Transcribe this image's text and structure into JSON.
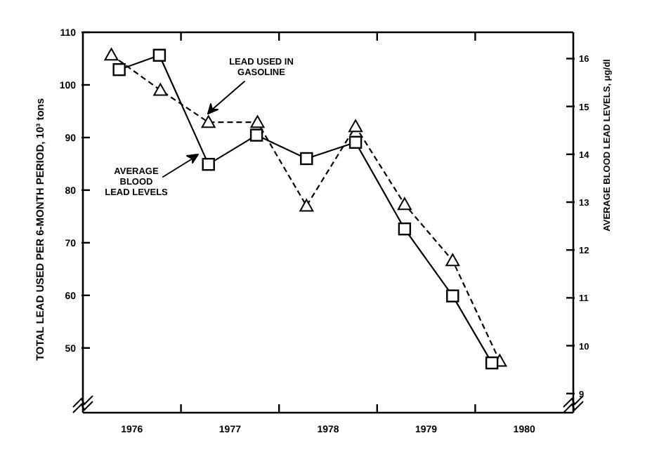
{
  "chart_data": {
    "type": "line",
    "ylabel": "TOTAL LEAD USED PER 6-MONTH PERIOD, 10³ tons",
    "y2label": "AVERAGE BLOOD LEAD LEVELS, μg/dl",
    "annotations": [
      "LEAD USED IN\nGASOLINE",
      "AVERAGE\nBLOOD\nLEAD LEVELS"
    ],
    "xlim": [
      1976,
      1981
    ],
    "xticks": [
      {
        "value": 1976.5,
        "label": "1976"
      },
      {
        "value": 1977,
        "label": null
      },
      {
        "value": 1977.5,
        "label": "1977"
      },
      {
        "value": 1978,
        "label": null
      },
      {
        "value": 1978.5,
        "label": "1978"
      },
      {
        "value": 1979,
        "label": null
      },
      {
        "value": 1979.5,
        "label": "1979"
      },
      {
        "value": 1980,
        "label": null
      },
      {
        "value": 1980.5,
        "label": "1980"
      }
    ],
    "ylim": [
      37.7,
      110
    ],
    "yticks": [
      50,
      60,
      70,
      80,
      90,
      100,
      110
    ],
    "y2lim": [
      8.6,
      16.55
    ],
    "y2ticks": [
      9,
      10,
      11,
      12,
      13,
      14,
      15,
      16
    ],
    "grid": false,
    "series": [
      {
        "color": "#000000",
        "marker": "triangle",
        "line_style": "dashed",
        "x": [
          1976.29,
          1976.79,
          1977.28,
          1977.78,
          1978.28,
          1978.78,
          1979.28,
          1979.77,
          1980.25
        ],
        "values": [
          105.7,
          99.0,
          92.9,
          92.9,
          77.0,
          92.1,
          77.3,
          66.6,
          47.5
        ]
      },
      {
        "color": "#000000",
        "marker": "square",
        "line_style": "solid",
        "axis": "y2",
        "x": [
          1976.37,
          1976.78,
          1977.28,
          1977.77,
          1978.28,
          1978.78,
          1979.28,
          1979.77,
          1980.17
        ],
        "values": [
          15.77,
          16.07,
          13.79,
          14.4,
          13.91,
          14.25,
          12.44,
          11.04,
          9.64
        ]
      }
    ]
  }
}
